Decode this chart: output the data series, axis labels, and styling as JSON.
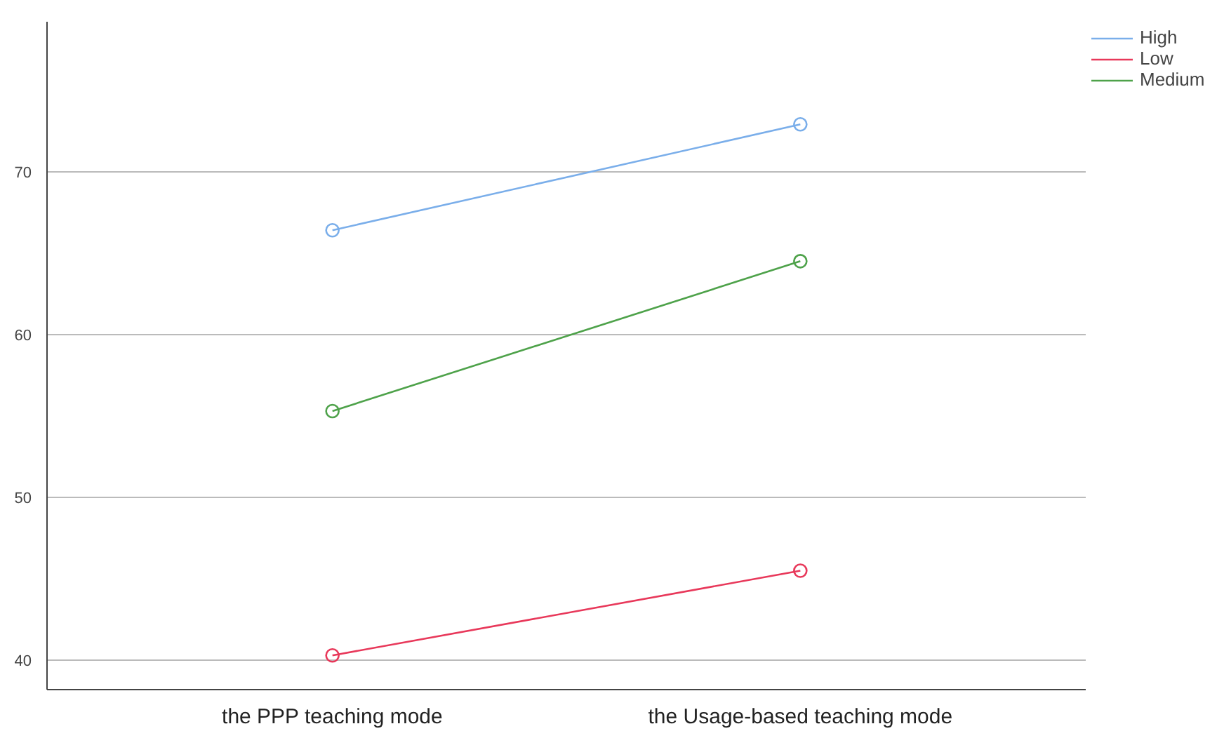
{
  "chart_data": {
    "type": "line",
    "categories": [
      "the PPP teaching mode",
      "the Usage-based teaching mode"
    ],
    "series": [
      {
        "name": "High",
        "color": "#7aaeea",
        "values": [
          66.4,
          72.9
        ]
      },
      {
        "name": "Low",
        "color": "#e8385a",
        "values": [
          40.3,
          45.5
        ]
      },
      {
        "name": "Medium",
        "color": "#4ea24a",
        "values": [
          55.3,
          64.5
        ]
      }
    ],
    "ylim": [
      38.2,
      79.2
    ],
    "yticks": [
      40,
      50,
      60,
      70
    ],
    "grid": "y",
    "legend": "top right",
    "marker": "circle",
    "line_style": "solid"
  }
}
